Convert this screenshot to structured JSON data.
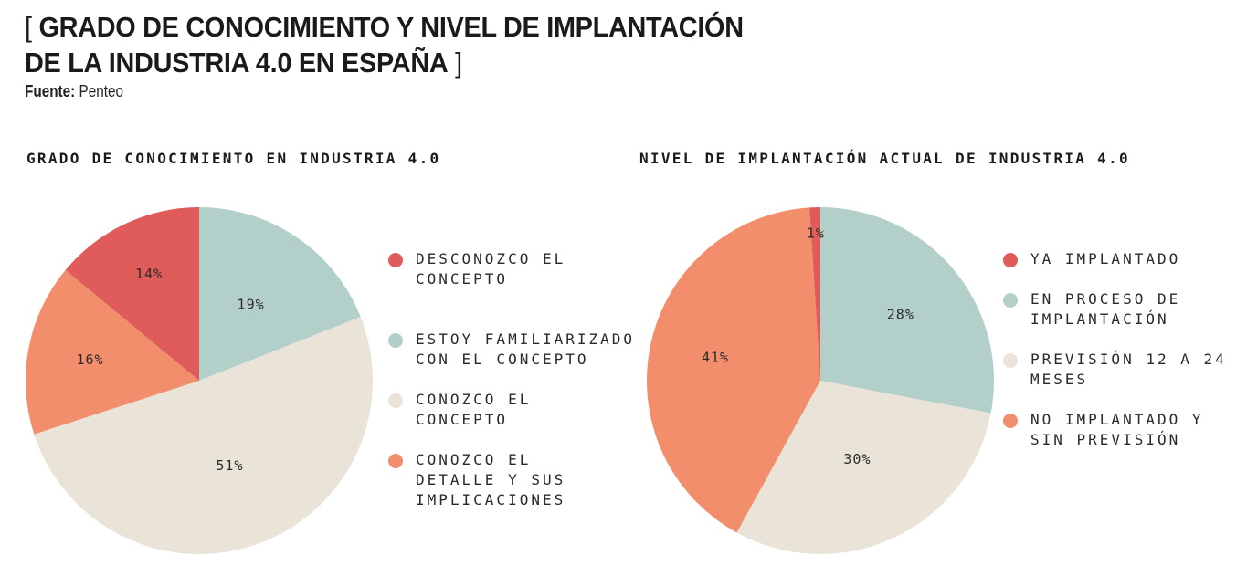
{
  "header": {
    "title_open": "[ ",
    "title_line1": "GRADO DE CONOCIMIENTO Y NIVEL DE IMPLANTACIÓN",
    "title_line2": "DE LA INDUSTRIA 4.0 EN ESPAÑA",
    "title_close": " ]",
    "source_label": "Fuente:",
    "source_value": " Penteo"
  },
  "colors": {
    "red": "#e05c5a",
    "teal": "#b3cfc9",
    "beige": "#e9e4d7",
    "orange": "#f28e6c"
  },
  "chart_data": [
    {
      "type": "pie",
      "title": "GRADO DE CONOCIMIENTO EN INDUSTRIA 4.0",
      "start": "12 o'clock",
      "direction": "clockwise",
      "legend_position": "right",
      "slices": [
        {
          "label": "ESTOY FAMILIARIZADO CON EL CONCEPTO",
          "value": 19,
          "display": "19%",
          "color": "#b3cfc9"
        },
        {
          "label": "CONOZCO EL CONCEPTO",
          "value": 51,
          "display": "51%",
          "color": "#e9e4d7"
        },
        {
          "label": "CONOZCO EL DETALLE Y SUS IMPLICACIONES",
          "value": 16,
          "display": "16%",
          "color": "#f28e6c"
        },
        {
          "label": "DESCONOZCO EL CONCEPTO",
          "value": 14,
          "display": "14%",
          "color": "#e05c5a"
        }
      ],
      "legend": [
        {
          "lines": [
            "DESCONOZCO EL",
            "CONCEPTO"
          ],
          "color": "#e05c5a"
        },
        {
          "lines": [
            "ESTOY FAMILIARIZADO",
            "CON EL CONCEPTO"
          ],
          "color": "#b3cfc9"
        },
        {
          "lines": [
            "CONOZCO EL",
            "CONCEPTO"
          ],
          "color": "#e9e4d7"
        },
        {
          "lines": [
            "CONOZCO EL",
            "DETALLE Y SUS",
            "IMPLICACIONES"
          ],
          "color": "#f28e6c"
        }
      ]
    },
    {
      "type": "pie",
      "title": "NIVEL DE IMPLANTACIÓN ACTUAL DE INDUSTRIA 4.0",
      "start": "12 o'clock",
      "direction": "clockwise",
      "legend_position": "right",
      "slices": [
        {
          "label": "EN PROCESO DE IMPLANTACIÓN",
          "value": 28,
          "display": "28%",
          "color": "#b3cfc9"
        },
        {
          "label": "PREVISIÓN 12 A 24 MESES",
          "value": 30,
          "display": "30%",
          "color": "#e9e4d7"
        },
        {
          "label": "NO IMPLANTADO Y SIN PREVISIÓN",
          "value": 41,
          "display": "41%",
          "color": "#f28e6c"
        },
        {
          "label": "YA IMPLANTADO",
          "value": 1,
          "display": "1%",
          "color": "#e05c5a"
        }
      ],
      "legend": [
        {
          "lines": [
            "YA IMPLANTADO"
          ],
          "color": "#e05c5a"
        },
        {
          "lines": [
            "EN PROCESO DE",
            "IMPLANTACIÓN"
          ],
          "color": "#b3cfc9"
        },
        {
          "lines": [
            "PREVISIÓN 12 A 24",
            "MESES"
          ],
          "color": "#e9e4d7"
        },
        {
          "lines": [
            "NO IMPLANTADO Y",
            "SIN PREVISIÓN"
          ],
          "color": "#f28e6c"
        }
      ]
    }
  ]
}
